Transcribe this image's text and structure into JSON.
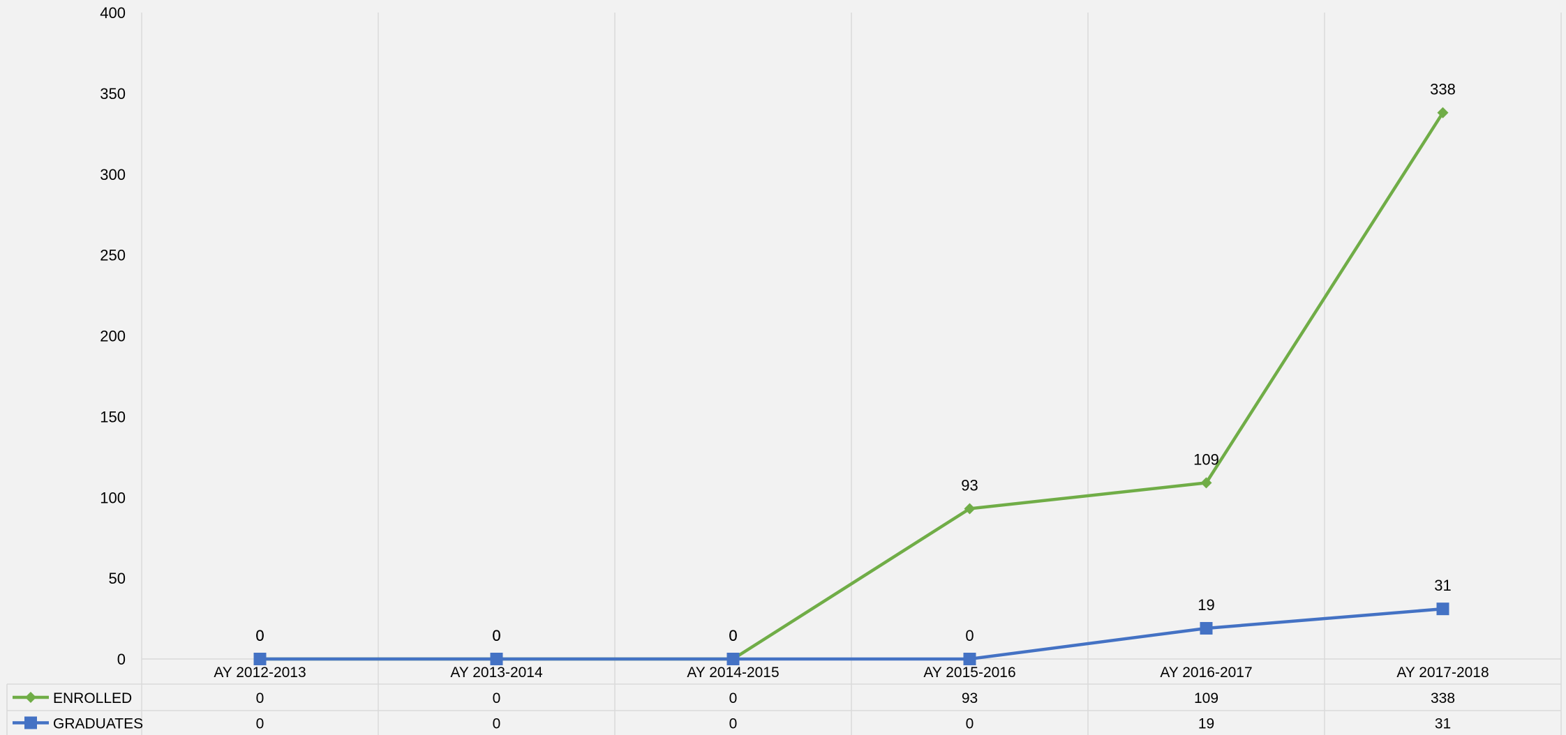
{
  "colors": {
    "background": "#f2f2f2",
    "grid": "#d9d9d9",
    "enrolled": "#70ad47",
    "graduates": "#4472c4"
  },
  "chart_data": {
    "type": "line",
    "title": "",
    "xlabel": "",
    "ylabel": "",
    "ylim": [
      0,
      400
    ],
    "yticks": [
      0,
      50,
      100,
      150,
      200,
      250,
      300,
      350,
      400
    ],
    "categories": [
      "AY 2012-2013",
      "AY 2013-2014",
      "AY 2014-2015",
      "AY 2015-2016",
      "AY 2016-2017",
      "AY 2017-2018"
    ],
    "grid": "vertical",
    "legend": "data-table",
    "series": [
      {
        "name": "ENROLLED",
        "values": [
          0,
          0,
          0,
          93,
          109,
          338
        ],
        "color": "#70ad47",
        "marker": "diamond-icon"
      },
      {
        "name": "GRADUATES",
        "values": [
          0,
          0,
          0,
          0,
          19,
          31
        ],
        "color": "#4472c4",
        "marker": "square-icon"
      }
    ]
  }
}
